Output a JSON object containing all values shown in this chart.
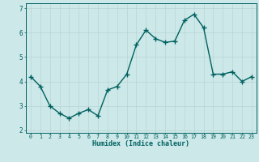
{
  "x": [
    0,
    1,
    2,
    3,
    4,
    5,
    6,
    7,
    8,
    9,
    10,
    11,
    12,
    13,
    14,
    15,
    16,
    17,
    18,
    19,
    20,
    21,
    22,
    23
  ],
  "y": [
    4.2,
    3.8,
    3.0,
    2.7,
    2.5,
    2.7,
    2.85,
    2.6,
    3.65,
    3.8,
    4.3,
    5.5,
    6.1,
    5.75,
    5.6,
    5.65,
    6.5,
    6.75,
    6.2,
    4.3,
    4.3,
    4.4,
    4.0,
    4.2
  ],
  "xlabel": "Humidex (Indice chaleur)",
  "ylim": [
    1.9,
    7.2
  ],
  "xlim": [
    -0.5,
    23.5
  ],
  "bg_color": "#cce8e8",
  "line_color": "#006060",
  "grid_color": "#b8d4d4",
  "spine_color": "#006060",
  "label_color": "#006060",
  "marker": "+",
  "markersize": 4,
  "linewidth": 1.0,
  "yticks": [
    2,
    3,
    4,
    5,
    6,
    7
  ],
  "xticks": [
    0,
    1,
    2,
    3,
    4,
    5,
    6,
    7,
    8,
    9,
    10,
    11,
    12,
    13,
    14,
    15,
    16,
    17,
    18,
    19,
    20,
    21,
    22,
    23
  ],
  "xlabel_fontsize": 6.0,
  "xtick_fontsize": 4.8,
  "ytick_fontsize": 5.5
}
